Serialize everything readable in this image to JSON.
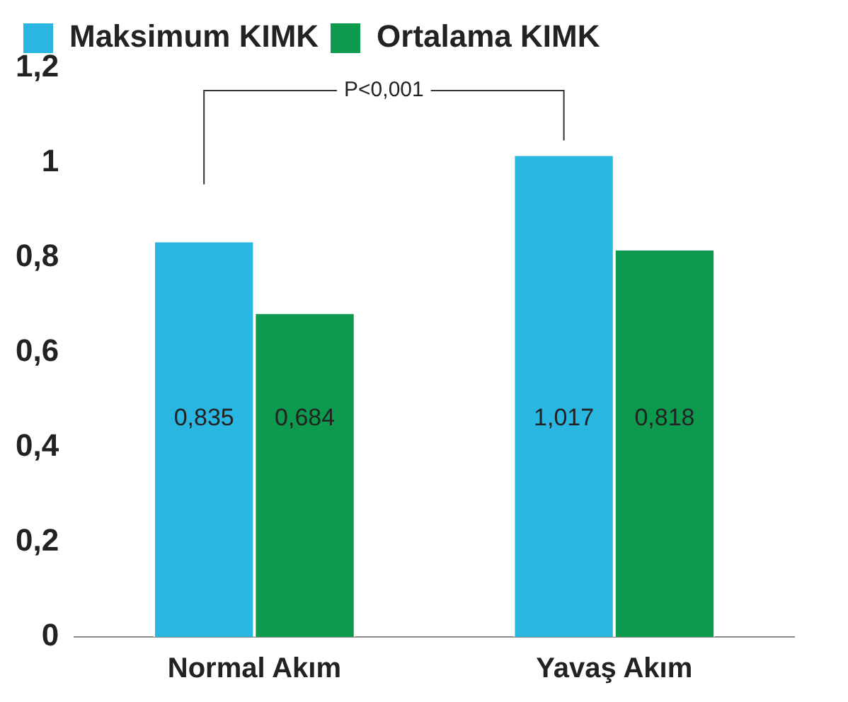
{
  "chart_data": {
    "type": "bar",
    "categories": [
      "Normal Akım",
      "Yavaş Akım"
    ],
    "series": [
      {
        "name": "Maksimum KIMK",
        "color": "#29b6e0",
        "values": [
          0.835,
          1.017
        ],
        "value_labels": [
          "0,835",
          "1,017"
        ]
      },
      {
        "name": "Ortalama KIMK",
        "color": "#0e9a4e",
        "values": [
          0.684,
          0.818
        ],
        "value_labels": [
          "0,684",
          "0,818"
        ]
      }
    ],
    "ylim": [
      0,
      1.2
    ],
    "yticks": [
      {
        "value": 0,
        "label": "0"
      },
      {
        "value": 0.2,
        "label": "0,2"
      },
      {
        "value": 0.4,
        "label": "0,4"
      },
      {
        "value": 0.6,
        "label": "0,6"
      },
      {
        "value": 0.8,
        "label": "0,8"
      },
      {
        "value": 1,
        "label": "1"
      },
      {
        "value": 1.2,
        "label": "1,2"
      }
    ],
    "annotations": [
      "P<0,001"
    ],
    "legend": "top",
    "grid": false
  }
}
